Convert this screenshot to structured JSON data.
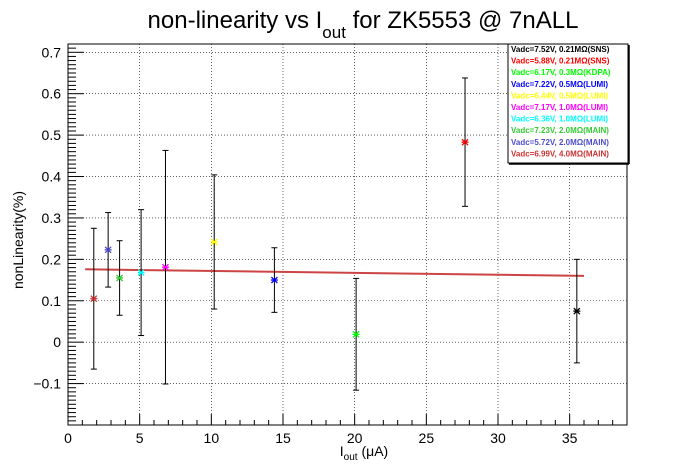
{
  "chart_data": {
    "type": "scatter",
    "title": {
      "main": "non-linearity vs I",
      "sub": "out",
      "rest": " for ZK5553 @ 7nALL"
    },
    "xlabel": {
      "main": "I",
      "sub": "out",
      "rest": " (μA)"
    },
    "ylabel": "nonLinearity(%)",
    "xlim": [
      0,
      39
    ],
    "ylim": [
      -0.2,
      0.72
    ],
    "grid": true,
    "legend_position": "top-right",
    "xticks": [
      0,
      5,
      10,
      15,
      20,
      25,
      30,
      35
    ],
    "yticks": [
      -0.1,
      0,
      0.1,
      0.2,
      0.3,
      0.4,
      0.5,
      0.6,
      0.7
    ],
    "ytick_labels": [
      "−0.1",
      "0",
      "0.1",
      "0.2",
      "0.3",
      "0.4",
      "0.5",
      "0.6",
      "0.7"
    ],
    "series": [
      {
        "name": "Vadc=7.52V, 0.21MΩ(SNS)",
        "color": "#000000",
        "points": [
          {
            "x": 35.5,
            "y": 0.075,
            "err": 0.125
          }
        ]
      },
      {
        "name": "Vadc=5.88V, 0.21MΩ(SNS)",
        "color": "#ff0000",
        "points": [
          {
            "x": 27.7,
            "y": 0.483,
            "err": 0.155
          }
        ]
      },
      {
        "name": "Vadc=6.17V, 0.3MΩ(KDPA)",
        "color": "#00ff00",
        "points": [
          {
            "x": 20.1,
            "y": 0.019,
            "err": 0.135
          }
        ]
      },
      {
        "name": "Vadc=7.22V, 0.5MΩ(LUMI)",
        "color": "#0000ff",
        "points": [
          {
            "x": 14.4,
            "y": 0.15,
            "err": 0.078
          }
        ]
      },
      {
        "name": "Vadc=6.44V, 0.5MΩ(LUMI)",
        "color": "#ffff00",
        "points": [
          {
            "x": 10.2,
            "y": 0.242,
            "err": 0.162
          }
        ]
      },
      {
        "name": "Vadc=7.17V, 1.0MΩ(LUMI)",
        "color": "#ff00ff",
        "points": [
          {
            "x": 6.8,
            "y": 0.181,
            "err": 0.282
          }
        ]
      },
      {
        "name": "Vadc=6.36V, 1.0MΩ(LUMI)",
        "color": "#00ffff",
        "points": [
          {
            "x": 5.1,
            "y": 0.168,
            "err": 0.152
          }
        ]
      },
      {
        "name": "Vadc=7.23V, 2.0MΩ(MAIN)",
        "color": "#33cc33",
        "points": [
          {
            "x": 3.6,
            "y": 0.155,
            "err": 0.09
          }
        ]
      },
      {
        "name": "Vadc=5.72V, 2.0MΩ(MAIN)",
        "color": "#4d4dcc",
        "points": [
          {
            "x": 2.8,
            "y": 0.223,
            "err": 0.09
          }
        ]
      },
      {
        "name": "Vadc=6.99V, 4.0MΩ(MAIN)",
        "color": "#cc3333",
        "points": [
          {
            "x": 1.8,
            "y": 0.105,
            "err": 0.17
          }
        ]
      }
    ],
    "fit_line": {
      "color": "#cc4444",
      "x": [
        1.2,
        36.0
      ],
      "y": [
        0.176,
        0.16
      ]
    }
  }
}
